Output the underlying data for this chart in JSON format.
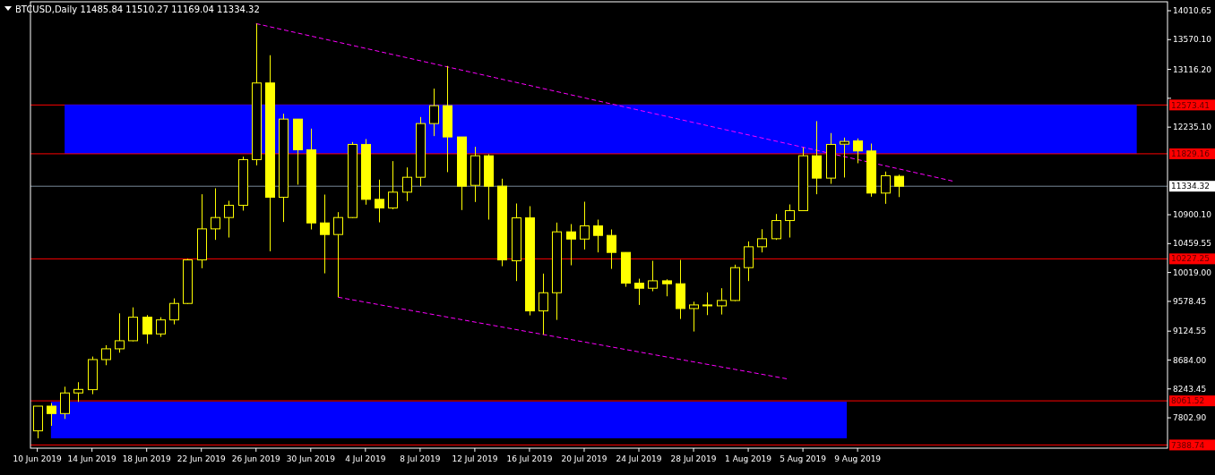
{
  "chart_data": {
    "type": "candlestick",
    "title": "BTCUSD,Daily  11485.84 11510.27 11169.04 11334.32",
    "color": "#ffff00",
    "x": [
      "2019-06-10",
      "2019-06-11",
      "2019-06-12",
      "2019-06-13",
      "2019-06-14",
      "2019-06-15",
      "2019-06-16",
      "2019-06-17",
      "2019-06-18",
      "2019-06-19",
      "2019-06-20",
      "2019-06-21",
      "2019-06-22",
      "2019-06-23",
      "2019-06-24",
      "2019-06-25",
      "2019-06-26",
      "2019-06-27",
      "2019-06-28",
      "2019-06-29",
      "2019-06-30",
      "2019-07-01",
      "2019-07-02",
      "2019-07-03",
      "2019-07-04",
      "2019-07-05",
      "2019-07-06",
      "2019-07-07",
      "2019-07-08",
      "2019-07-09",
      "2019-07-10",
      "2019-07-11",
      "2019-07-12",
      "2019-07-13",
      "2019-07-14",
      "2019-07-15",
      "2019-07-16",
      "2019-07-17",
      "2019-07-18",
      "2019-07-19",
      "2019-07-20",
      "2019-07-21",
      "2019-07-22",
      "2019-07-23",
      "2019-07-24",
      "2019-07-25",
      "2019-07-26",
      "2019-07-27",
      "2019-07-28",
      "2019-07-29",
      "2019-07-30",
      "2019-07-31",
      "2019-08-01",
      "2019-08-02",
      "2019-08-03",
      "2019-08-04",
      "2019-08-05",
      "2019-08-06",
      "2019-08-07",
      "2019-08-08",
      "2019-08-09",
      "2019-08-10",
      "2019-08-11",
      "2019-08-12"
    ],
    "ohlc": [
      [
        7604,
        7981,
        7490,
        7981
      ],
      [
        7981,
        8027,
        7681,
        7868
      ],
      [
        7868,
        8277,
        7786,
        8182
      ],
      [
        8182,
        8346,
        8045,
        8236
      ],
      [
        8232,
        8737,
        8163,
        8691
      ],
      [
        8691,
        8910,
        8605,
        8855
      ],
      [
        8855,
        9396,
        8796,
        8978
      ],
      [
        8978,
        9487,
        8970,
        9337
      ],
      [
        9337,
        9369,
        8932,
        9082
      ],
      [
        9082,
        9337,
        9037,
        9296
      ],
      [
        9296,
        9624,
        9228,
        9547
      ],
      [
        9547,
        10229,
        9537,
        10211
      ],
      [
        10211,
        11212,
        10084,
        10684
      ],
      [
        10684,
        11303,
        10516,
        10857
      ],
      [
        10857,
        11112,
        10552,
        11044
      ],
      [
        11044,
        11785,
        10962,
        11740
      ],
      [
        11740,
        13814,
        11653,
        12909
      ],
      [
        12909,
        13332,
        10343,
        11166
      ],
      [
        11166,
        12440,
        10789,
        12358
      ],
      [
        12358,
        12358,
        11358,
        11890
      ],
      [
        11890,
        12213,
        10675,
        10775
      ],
      [
        10775,
        11207,
        10006,
        10598
      ],
      [
        10598,
        10939,
        9642,
        10857
      ],
      [
        10857,
        12008,
        10850,
        11972
      ],
      [
        11972,
        12054,
        11053,
        11134
      ],
      [
        11134,
        11435,
        10784,
        11003
      ],
      [
        11003,
        11717,
        10984,
        11244
      ],
      [
        11244,
        11621,
        11107,
        11471
      ],
      [
        11471,
        12390,
        11335,
        12290
      ],
      [
        12290,
        12823,
        12099,
        12563
      ],
      [
        12563,
        13168,
        11549,
        12086
      ],
      [
        12086,
        12086,
        10971,
        11335
      ],
      [
        11348,
        11935,
        11094,
        11799
      ],
      [
        11799,
        11822,
        10825,
        11335
      ],
      [
        11335,
        11449,
        10115,
        10211
      ],
      [
        10197,
        11071,
        9888,
        10852
      ],
      [
        10852,
        11030,
        9365,
        9433
      ],
      [
        9433,
        10002,
        9073,
        9710
      ],
      [
        9710,
        10780,
        9296,
        10639
      ],
      [
        10639,
        10757,
        10129,
        10529
      ],
      [
        10529,
        11098,
        10370,
        10730
      ],
      [
        10730,
        10825,
        10325,
        10584
      ],
      [
        10584,
        10675,
        10074,
        10325
      ],
      [
        10325,
        10325,
        9801,
        9856
      ],
      [
        9856,
        9924,
        9524,
        9779
      ],
      [
        9779,
        10197,
        9733,
        9892
      ],
      [
        9892,
        9915,
        9656,
        9847
      ],
      [
        9847,
        10211,
        9310,
        9469
      ],
      [
        9469,
        9574,
        9119,
        9524
      ],
      [
        9510,
        9715,
        9369,
        9524
      ],
      [
        9510,
        9779,
        9378,
        9592
      ],
      [
        9592,
        10138,
        9583,
        10093
      ],
      [
        10093,
        10493,
        9888,
        10411
      ],
      [
        10411,
        10679,
        10325,
        10534
      ],
      [
        10534,
        10911,
        10516,
        10811
      ],
      [
        10811,
        11057,
        10552,
        10962
      ],
      [
        10962,
        11926,
        10962,
        11799
      ],
      [
        11799,
        12327,
        11212,
        11458
      ],
      [
        11458,
        12145,
        11371,
        11972
      ],
      [
        11976,
        12076,
        11467,
        12017
      ],
      [
        12026,
        12063,
        11685,
        11872
      ],
      [
        11872,
        11985,
        11175,
        11230
      ],
      [
        11230,
        11558,
        11066,
        11494
      ],
      [
        11485.84,
        11510.27,
        11169.04,
        11334.32
      ]
    ],
    "series": [
      {
        "type": "line",
        "color": "#0000ff",
        "x": [
          "2019-06-12",
          "2019-08-29T10:00"
        ],
        "values": [
          12573.41,
          12573.41
        ],
        "upper": [
          12573.41,
          12573.41
        ],
        "lower": [
          11829.16,
          11829.16
        ]
      },
      {
        "type": "line",
        "color": "#0000ff",
        "x": [
          "2019-06-11",
          "2019-08-08T05:00"
        ],
        "values": [
          8040,
          8040
        ],
        "upper": [
          8040,
          8040
        ],
        "lower": [
          7490,
          7490
        ]
      },
      {
        "type": "line",
        "color": "#ff00ff",
        "line_style": "dashed",
        "x": [
          "2019-06-26",
          "2019-08-16"
        ],
        "values": [
          13814,
          11411
        ]
      },
      {
        "type": "line",
        "color": "#ff00ff",
        "line_style": "dashed",
        "x": [
          "2019-07-02",
          "2019-08-04"
        ],
        "values": [
          9642,
          8391
        ]
      }
    ],
    "ref_lines": [
      {
        "axis": "y",
        "value": 12573.41,
        "label": "12573.41",
        "color": "#ff0000"
      },
      {
        "axis": "y",
        "value": 11829.16,
        "label": "11829.16",
        "color": "#ff0000"
      },
      {
        "axis": "y",
        "value": 11334.32,
        "label": "11334.32",
        "color": "#778899"
      },
      {
        "axis": "y",
        "value": 10227.25,
        "label": "10227.25",
        "color": "#ff0000"
      },
      {
        "axis": "y",
        "value": 8061.52,
        "label": "8061.52",
        "color": "#ff0000"
      },
      {
        "axis": "y",
        "value": 7388.74,
        "label": "7388.74",
        "color": "#ff0000"
      }
    ],
    "xlim": [
      "2019-06-09T12:00",
      "2019-08-31T16:00"
    ],
    "xticks": [
      {
        "value": "2019-06-10",
        "label": "10 Jun 2019"
      },
      {
        "value": "2019-06-14",
        "label": "14 Jun 2019"
      },
      {
        "value": "2019-06-18",
        "label": "18 Jun 2019"
      },
      {
        "value": "2019-06-22",
        "label": "22 Jun 2019"
      },
      {
        "value": "2019-06-26",
        "label": "26 Jun 2019"
      },
      {
        "value": "2019-06-30",
        "label": "30 Jun 2019"
      },
      {
        "value": "2019-07-04",
        "label": "4 Jul 2019"
      },
      {
        "value": "2019-07-08",
        "label": "8 Jul 2019"
      },
      {
        "value": "2019-07-12",
        "label": "12 Jul 2019"
      },
      {
        "value": "2019-07-16",
        "label": "16 Jul 2019"
      },
      {
        "value": "2019-07-20",
        "label": "20 Jul 2019"
      },
      {
        "value": "2019-07-24",
        "label": "24 Jul 2019"
      },
      {
        "value": "2019-07-28",
        "label": "28 Jul 2019"
      },
      {
        "value": "2019-08-01",
        "label": "1 Aug 2019"
      },
      {
        "value": "2019-08-05",
        "label": "5 Aug 2019"
      },
      {
        "value": "2019-08-09",
        "label": "9 Aug 2019"
      }
    ],
    "ylim": [
      7340,
      14147
    ],
    "yticks": [
      14010.65,
      {
        "value": 13570.1,
        "label": "13570.10"
      },
      {
        "value": 13116.2,
        "label": "13116.20"
      },
      {
        "value": 12675.65,
        "label": null
      },
      {
        "value": 12235.1,
        "label": "12235.10"
      },
      {
        "value": 10900.1,
        "label": "10900.10"
      },
      10459.55,
      {
        "value": 10019,
        "label": "10019.00"
      },
      9578.45,
      9124.55,
      {
        "value": 8684,
        "label": "8684.00"
      },
      8243.45,
      {
        "value": 7802.9,
        "label": "7802.90"
      }
    ],
    "grid": false
  }
}
